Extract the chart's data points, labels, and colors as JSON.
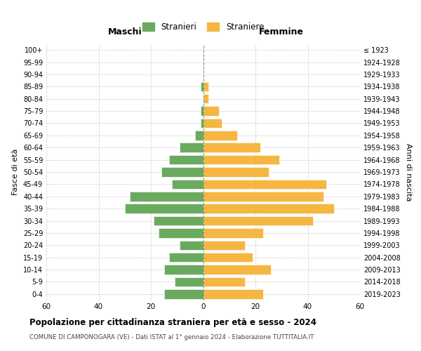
{
  "age_groups": [
    "0-4",
    "5-9",
    "10-14",
    "15-19",
    "20-24",
    "25-29",
    "30-34",
    "35-39",
    "40-44",
    "45-49",
    "50-54",
    "55-59",
    "60-64",
    "65-69",
    "70-74",
    "75-79",
    "80-84",
    "85-89",
    "90-94",
    "95-99",
    "100+"
  ],
  "birth_years": [
    "2019-2023",
    "2014-2018",
    "2009-2013",
    "2004-2008",
    "1999-2003",
    "1994-1998",
    "1989-1993",
    "1984-1988",
    "1979-1983",
    "1974-1978",
    "1969-1973",
    "1964-1968",
    "1959-1963",
    "1954-1958",
    "1949-1953",
    "1944-1948",
    "1939-1943",
    "1934-1938",
    "1929-1933",
    "1924-1928",
    "≤ 1923"
  ],
  "males": [
    15,
    11,
    15,
    13,
    9,
    17,
    19,
    30,
    28,
    12,
    16,
    13,
    9,
    3,
    1,
    1,
    0,
    1,
    0,
    0,
    0
  ],
  "females": [
    23,
    16,
    26,
    19,
    16,
    23,
    42,
    50,
    46,
    47,
    25,
    29,
    22,
    13,
    7,
    6,
    2,
    2,
    0,
    0,
    0
  ],
  "color_male": "#6aaa5e",
  "color_female": "#f5b642",
  "title": "Popolazione per cittadinanza straniera per età e sesso - 2024",
  "subtitle": "COMUNE DI CAMPONOGARA (VE) - Dati ISTAT al 1° gennaio 2024 - Elaborazione TUTTITALIA.IT",
  "label_male": "Stranieri",
  "label_female": "Straniere",
  "xlabel_left": "Maschi",
  "xlabel_right": "Femmine",
  "ylabel_left": "Fasce di età",
  "ylabel_right": "Anni di nascita",
  "xlim": 60,
  "bg_color": "#ffffff",
  "grid_color": "#cccccc"
}
